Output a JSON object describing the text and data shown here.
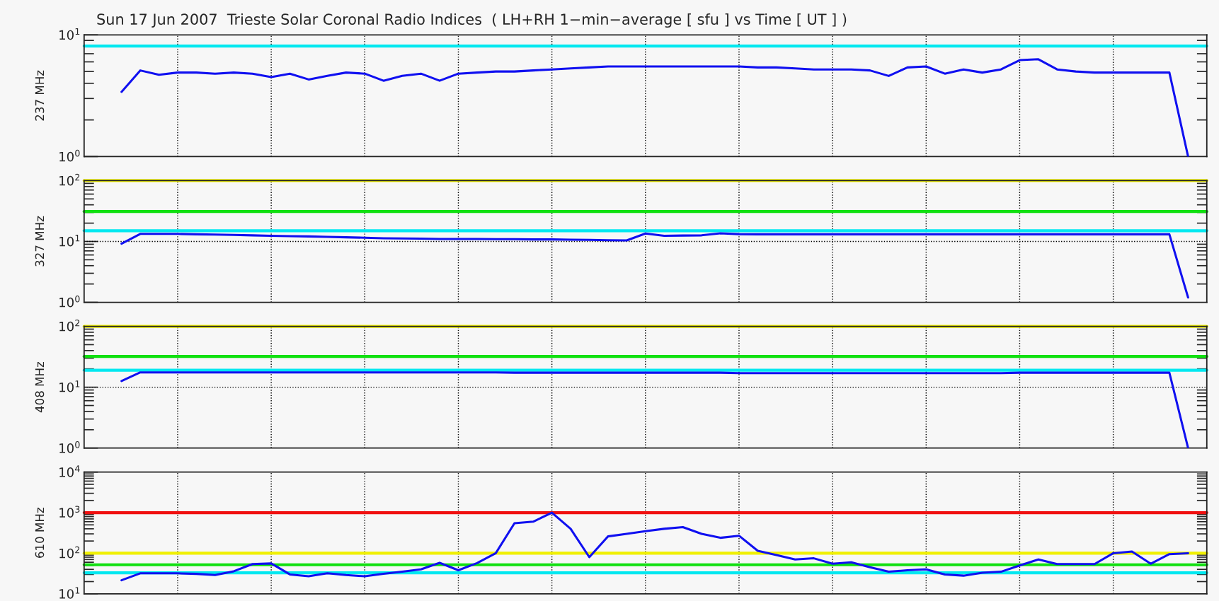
{
  "chart_data": [
    {
      "type": "line",
      "title": "Sun 17 Jun 2007  Trieste Solar Coronal Radio Indices  ( LH+RH 1−min−average [ sfu ] vs Time [ UT ] )",
      "ylabel": "237 MHz",
      "log": true,
      "grid": "x",
      "tick_labels": "y",
      "ylim": [
        1,
        10
      ],
      "yticks": [
        {
          "value": 1,
          "label": "10$^{0}$"
        },
        {
          "value": 10,
          "label": "10$^{1}$"
        }
      ],
      "categories": [
        null,
        null,
        null,
        null,
        null,
        null,
        null,
        null,
        null,
        null,
        null,
        null,
        null,
        null,
        null,
        null,
        null,
        null,
        null,
        null,
        null,
        null,
        null,
        null,
        null,
        null,
        null,
        null,
        null,
        null,
        null,
        null,
        null,
        null,
        null,
        null,
        null,
        null,
        null,
        null,
        null,
        null,
        null,
        null,
        null,
        null,
        null,
        null,
        null,
        null,
        null,
        null,
        null,
        null,
        null,
        null,
        null,
        null
      ],
      "ref_lines": [
        {
          "axis": "y",
          "value": 8.1,
          "color": "#00e8f0",
          "line_style": "solid"
        }
      ],
      "series": [
        {
          "color": "#1010f0",
          "values": [
            3.4,
            5.1,
            4.7,
            4.9,
            4.9,
            4.8,
            4.9,
            4.8,
            4.5,
            4.8,
            4.3,
            4.6,
            4.9,
            4.8,
            4.2,
            4.6,
            4.8,
            4.2,
            4.8,
            4.9,
            5.0,
            5.0,
            5.1,
            5.2,
            5.3,
            5.4,
            5.5,
            5.5,
            5.5,
            5.5,
            5.5,
            5.5,
            5.5,
            5.5,
            5.4,
            5.4,
            5.3,
            5.2,
            5.2,
            5.2,
            5.1,
            4.6,
            5.4,
            5.5,
            4.8,
            5.2,
            4.9,
            5.2,
            6.2,
            6.3,
            5.2,
            5.0,
            4.9,
            4.9,
            4.9,
            4.9,
            4.9,
            1.0
          ]
        }
      ]
    },
    {
      "type": "line",
      "ylabel": "327 MHz",
      "log": true,
      "grid": "x",
      "tick_labels": "y",
      "ylim": [
        1,
        100
      ],
      "yticks": [
        {
          "value": 1,
          "label": "10$^{0}$"
        },
        {
          "value": 10,
          "label": "10$^{1}$"
        },
        {
          "value": 100,
          "label": "10$^{2}$"
        }
      ],
      "categories": [
        null,
        null,
        null,
        null,
        null,
        null,
        null,
        null,
        null,
        null,
        null,
        null,
        null,
        null,
        null,
        null,
        null,
        null,
        null,
        null,
        null,
        null,
        null,
        null,
        null,
        null,
        null,
        null,
        null,
        null,
        null,
        null,
        null,
        null,
        null,
        null,
        null,
        null,
        null,
        null,
        null,
        null,
        null,
        null,
        null,
        null,
        null,
        null,
        null,
        null,
        null,
        null,
        null,
        null,
        null,
        null,
        null,
        null
      ],
      "ref_lines": [
        {
          "axis": "y",
          "value": 100,
          "color": "#f0f000",
          "line_style": "solid"
        },
        {
          "axis": "y",
          "value": 31,
          "color": "#10e010",
          "line_style": "solid"
        },
        {
          "axis": "y",
          "value": 15,
          "color": "#00e8f0",
          "line_style": "solid"
        },
        {
          "axis": "y",
          "value": 10,
          "color": "#000000",
          "line_style": "dotted"
        }
      ],
      "series": [
        {
          "color": "#1010f0",
          "values": [
            9.2,
            13.3,
            13.3,
            13.3,
            13.1,
            13.0,
            12.8,
            12.6,
            12.4,
            12.2,
            12.1,
            11.9,
            11.7,
            11.5,
            11.3,
            11.2,
            11.1,
            11.0,
            11.0,
            11.0,
            10.9,
            10.9,
            10.8,
            10.8,
            10.7,
            10.6,
            10.5,
            10.4,
            13.5,
            12.4,
            12.5,
            12.6,
            13.6,
            13.2,
            13.1,
            13.1,
            13.1,
            13.1,
            13.1,
            13.1,
            13.1,
            13.1,
            13.1,
            13.1,
            13.1,
            13.1,
            13.1,
            13.1,
            13.1,
            13.1,
            13.1,
            13.1,
            13.1,
            13.1,
            13.1,
            13.1,
            13.1,
            1.2
          ]
        }
      ]
    },
    {
      "type": "line",
      "ylabel": "408 MHz",
      "log": true,
      "grid": "x",
      "tick_labels": "y",
      "ylim": [
        1,
        100
      ],
      "yticks": [
        {
          "value": 1,
          "label": "10$^{0}$"
        },
        {
          "value": 10,
          "label": "10$^{1}$"
        },
        {
          "value": 100,
          "label": "10$^{2}$"
        }
      ],
      "categories": [
        null,
        null,
        null,
        null,
        null,
        null,
        null,
        null,
        null,
        null,
        null,
        null,
        null,
        null,
        null,
        null,
        null,
        null,
        null,
        null,
        null,
        null,
        null,
        null,
        null,
        null,
        null,
        null,
        null,
        null,
        null,
        null,
        null,
        null,
        null,
        null,
        null,
        null,
        null,
        null,
        null,
        null,
        null,
        null,
        null,
        null,
        null,
        null,
        null,
        null,
        null,
        null,
        null,
        null,
        null,
        null,
        null,
        null
      ],
      "ref_lines": [
        {
          "axis": "y",
          "value": 100,
          "color": "#f0f000",
          "line_style": "solid"
        },
        {
          "axis": "y",
          "value": 32,
          "color": "#10e010",
          "line_style": "solid"
        },
        {
          "axis": "y",
          "value": 19,
          "color": "#00e8f0",
          "line_style": "solid"
        },
        {
          "axis": "y",
          "value": 10,
          "color": "#000000",
          "line_style": "dotted"
        }
      ],
      "series": [
        {
          "color": "#1010f0",
          "values": [
            12.6,
            17.5,
            17.5,
            17.5,
            17.5,
            17.5,
            17.5,
            17.5,
            17.5,
            17.5,
            17.5,
            17.5,
            17.5,
            17.5,
            17.5,
            17.5,
            17.5,
            17.5,
            17.5,
            17.5,
            17.5,
            17.3,
            17.3,
            17.3,
            17.3,
            17.3,
            17.3,
            17.3,
            17.3,
            17.3,
            17.3,
            17.3,
            17.3,
            17.0,
            17.0,
            17.0,
            17.0,
            17.0,
            17.0,
            17.0,
            17.0,
            17.0,
            17.0,
            17.0,
            17.0,
            17.0,
            17.0,
            17.0,
            17.3,
            17.3,
            17.3,
            17.3,
            17.3,
            17.3,
            17.3,
            17.3,
            17.3,
            1.0
          ]
        }
      ]
    },
    {
      "type": "line",
      "ylabel": "610 MHz",
      "log": true,
      "grid": "x",
      "tick_labels": "y",
      "ylim": [
        10,
        10000
      ],
      "yticks": [
        {
          "value": 10,
          "label": "10$^{1}$"
        },
        {
          "value": 100,
          "label": "10$^{2}$"
        },
        {
          "value": 1000,
          "label": "10$^{3}$"
        },
        {
          "value": 10000,
          "label": "10$^{4}$"
        }
      ],
      "categories": [
        null,
        null,
        null,
        null,
        null,
        null,
        null,
        null,
        null,
        null,
        null,
        null,
        null,
        null,
        null,
        null,
        null,
        null,
        null,
        null,
        null,
        null,
        null,
        null,
        null,
        null,
        null,
        null,
        null,
        null,
        null,
        null,
        null,
        null,
        null,
        null,
        null,
        null,
        null,
        null,
        null,
        null,
        null,
        null,
        null,
        null,
        null,
        null,
        null,
        null,
        null,
        null,
        null,
        null,
        null,
        null,
        null,
        null
      ],
      "ref_lines": [
        {
          "axis": "y",
          "value": 1000,
          "color": "#f01010",
          "line_style": "solid"
        },
        {
          "axis": "y",
          "value": 100,
          "color": "#f0f000",
          "line_style": "solid"
        },
        {
          "axis": "y",
          "value": 52,
          "color": "#10e010",
          "line_style": "solid"
        },
        {
          "axis": "y",
          "value": 33,
          "color": "#00e8f0",
          "line_style": "solid"
        }
      ],
      "series": [
        {
          "color": "#1010f0",
          "values": [
            21.6,
            32,
            32,
            32,
            31,
            29,
            36,
            54,
            56,
            30,
            27,
            32,
            29,
            27,
            31,
            35,
            40,
            58,
            38,
            57,
            100,
            550,
            600,
            1000,
            400,
            80,
            260,
            300,
            350,
            400,
            440,
            300,
            240,
            270,
            115,
            90,
            70,
            75,
            55,
            60,
            45,
            35,
            38,
            40,
            30,
            28,
            33,
            35,
            50,
            70,
            54,
            54,
            54,
            100,
            110,
            55,
            95,
            100
          ]
        }
      ]
    }
  ]
}
